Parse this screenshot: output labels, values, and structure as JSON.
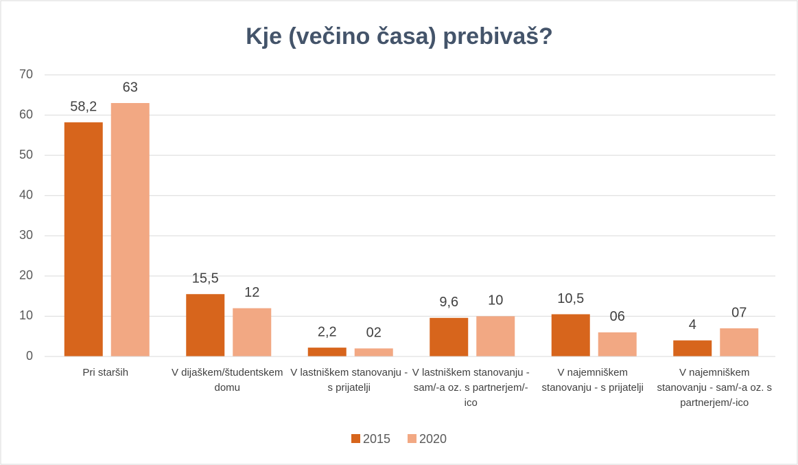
{
  "chart_data": {
    "type": "bar",
    "title": "Kje (večino časa) prebivaš?",
    "categories": [
      "Pri starših",
      "V dijaškem/študentskem domu",
      "V lastniškem stanovanju - s prijatelji",
      "V lastniškem stanovanju - sam/-a oz. s partnerjem/-ico",
      "V najemniškem stanovanju - s prijatelji",
      "V najemniškem stanovanju - sam/-a oz. s partnerjem/-ico"
    ],
    "series": [
      {
        "name": "2015",
        "color": "#d7651c",
        "values": [
          58.2,
          15.5,
          2.2,
          9.6,
          10.5,
          4
        ],
        "value_labels": [
          "58,2",
          "15,5",
          "2,2",
          "9,6",
          "10,5",
          "4"
        ]
      },
      {
        "name": "2020",
        "color": "#f2a883",
        "values": [
          63,
          12,
          2,
          10,
          6,
          7
        ],
        "value_labels": [
          "63",
          "12",
          "02",
          "10",
          "06",
          "07"
        ]
      }
    ],
    "ylim": [
      0,
      70
    ],
    "yticks": [
      0,
      10,
      20,
      30,
      40,
      50,
      60,
      70
    ],
    "grid": true,
    "legend": "bottom"
  }
}
